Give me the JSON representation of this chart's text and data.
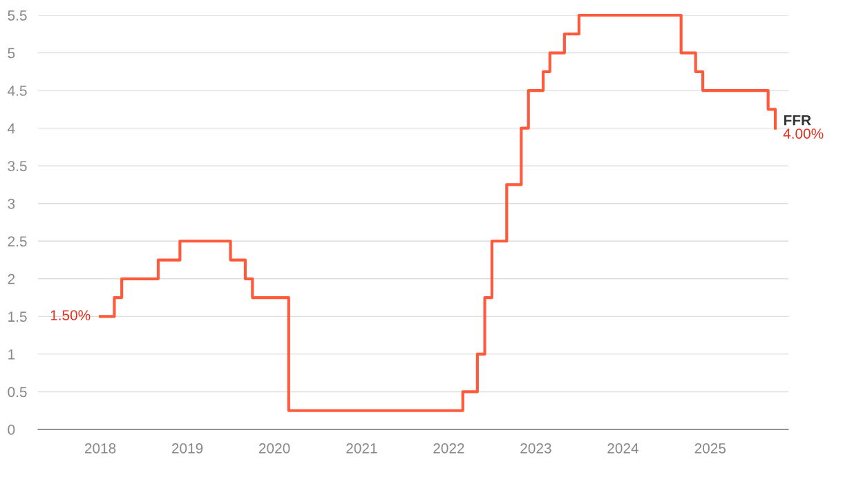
{
  "chart_data": {
    "type": "step",
    "x": [
      "2018-01",
      "2018-03",
      "2018-04",
      "2018-09",
      "2018-12",
      "2019-07",
      "2019-09",
      "2019-10",
      "2020-03",
      "2022-03",
      "2022-05",
      "2022-06",
      "2022-07",
      "2022-09",
      "2022-11",
      "2022-12",
      "2023-02",
      "2023-03",
      "2023-05",
      "2023-07",
      "2024-09",
      "2024-11",
      "2024-12",
      "2025-09",
      "2025-10"
    ],
    "series": [
      {
        "name": "FFR",
        "color": "#ff5a3c",
        "values": [
          1.5,
          1.75,
          2.0,
          2.25,
          2.5,
          2.25,
          2.0,
          1.75,
          0.25,
          0.5,
          1.0,
          1.75,
          2.5,
          3.25,
          4.0,
          4.5,
          4.75,
          5.0,
          5.25,
          5.5,
          5.0,
          4.75,
          4.5,
          4.25,
          4.0
        ]
      }
    ],
    "xlim": [
      "2017-04-15",
      "2025-11-25"
    ],
    "xticks": [
      {
        "value": "2018",
        "label": "2018"
      },
      {
        "value": "2019",
        "label": "2019"
      },
      {
        "value": "2020",
        "label": "2020"
      },
      {
        "value": "2021",
        "label": "2021"
      },
      {
        "value": "2022",
        "label": "2022"
      },
      {
        "value": "2023",
        "label": "2023"
      },
      {
        "value": "2024",
        "label": "2024"
      },
      {
        "value": "2025",
        "label": "2025"
      }
    ],
    "ylim": [
      0,
      5.5
    ],
    "yticks": [
      0,
      0.5,
      1,
      1.5,
      2,
      2.5,
      3,
      3.5,
      4,
      4.5,
      5,
      5.5
    ],
    "grid": "y",
    "legend": false,
    "line_style": "solid",
    "annotations": [
      {
        "text": "1.50%",
        "x": "2018-01",
        "y": 1.5
      },
      {
        "text": "4.00%",
        "x": "2025-10",
        "y": 4.0
      }
    ]
  }
}
